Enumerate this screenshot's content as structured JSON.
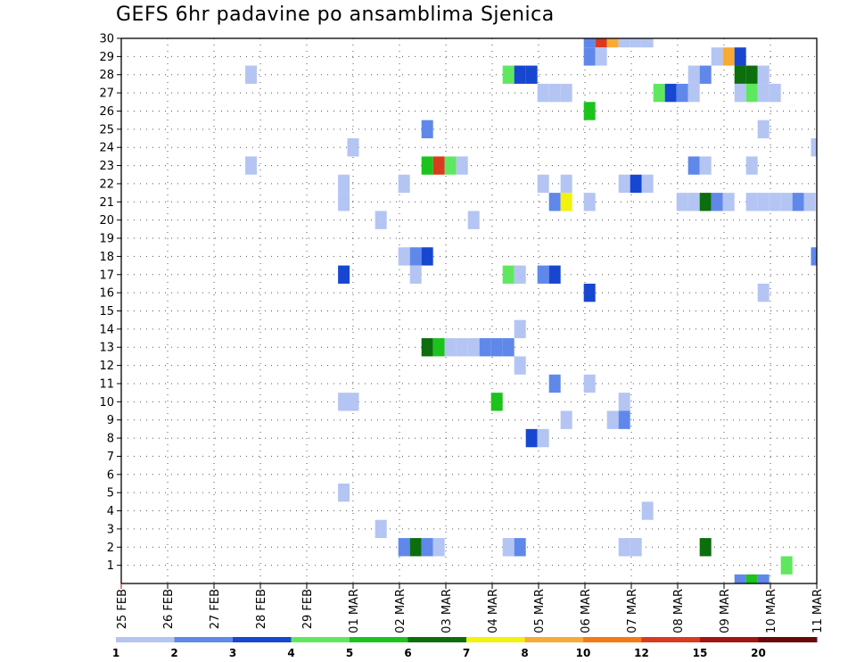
{
  "chart_data": {
    "type": "heatmap",
    "title": "GEFS 6hr padavine po ansamblima Sjenica",
    "xlabel": "",
    "ylabel": "",
    "ylim": [
      0,
      30
    ],
    "y_ticks": [
      "1",
      "2",
      "3",
      "4",
      "5",
      "6",
      "7",
      "8",
      "9",
      "10",
      "11",
      "12",
      "13",
      "14",
      "15",
      "16",
      "17",
      "18",
      "19",
      "20",
      "21",
      "22",
      "23",
      "24",
      "25",
      "26",
      "27",
      "28",
      "29",
      "30"
    ],
    "x_ticks": [
      "25 FEB",
      "26 FEB",
      "27 FEB",
      "28 FEB",
      "29 FEB",
      "01 MAR",
      "02 MAR",
      "03 MAR",
      "04 MAR",
      "05 MAR",
      "06 MAR",
      "07 MAR",
      "08 MAR",
      "09 MAR",
      "10 MAR",
      "11 MAR"
    ],
    "grid": true,
    "colorbar": {
      "position": "bottom",
      "labels": [
        "1",
        "2",
        "3",
        "4",
        "5",
        "6",
        "7",
        "8",
        "10",
        "12",
        "15",
        "20"
      ],
      "colors": [
        "#b4c5f3",
        "#5f88ea",
        "#1747d0",
        "#5fe85f",
        "#1cc31c",
        "#0c6e0c",
        "#f2f20c",
        "#f7ab35",
        "#f57a12",
        "#da3b1e",
        "#a3150f",
        "#6b0808"
      ]
    },
    "cells": [
      {
        "d": 2.8,
        "m": 28,
        "l": 0
      },
      {
        "d": 2.8,
        "m": 23,
        "l": 0
      },
      {
        "d": 4.8,
        "m": 21,
        "l": 0
      },
      {
        "d": 4.8,
        "m": 17,
        "l": 2
      },
      {
        "d": 4.8,
        "m": 22,
        "l": 0
      },
      {
        "d": 4.8,
        "m": 10,
        "l": 0
      },
      {
        "d": 4.8,
        "m": 5,
        "l": 0
      },
      {
        "d": 5.0,
        "m": 24,
        "l": 0
      },
      {
        "d": 5.0,
        "m": 10,
        "l": 0
      },
      {
        "d": 5.6,
        "m": 20,
        "l": 0
      },
      {
        "d": 5.6,
        "m": 3,
        "l": 0
      },
      {
        "d": 6.1,
        "m": 22,
        "l": 0
      },
      {
        "d": 6.1,
        "m": 18,
        "l": 0
      },
      {
        "d": 6.1,
        "m": 2,
        "l": 1
      },
      {
        "d": 6.35,
        "m": 18,
        "l": 1
      },
      {
        "d": 6.35,
        "m": 17,
        "l": 0
      },
      {
        "d": 6.35,
        "m": 2,
        "l": 5
      },
      {
        "d": 6.6,
        "m": 25,
        "l": 1
      },
      {
        "d": 6.6,
        "m": 23,
        "l": 4
      },
      {
        "d": 6.6,
        "m": 18,
        "l": 2
      },
      {
        "d": 6.6,
        "m": 13,
        "l": 5
      },
      {
        "d": 6.6,
        "m": 2,
        "l": 1
      },
      {
        "d": 6.85,
        "m": 23,
        "l": 9
      },
      {
        "d": 6.85,
        "m": 13,
        "l": 4
      },
      {
        "d": 6.85,
        "m": 2,
        "l": 0
      },
      {
        "d": 7.1,
        "m": 23,
        "l": 3
      },
      {
        "d": 7.1,
        "m": 13,
        "l": 0
      },
      {
        "d": 7.35,
        "m": 23,
        "l": 0
      },
      {
        "d": 7.35,
        "m": 13,
        "l": 0
      },
      {
        "d": 7.6,
        "m": 20,
        "l": 0
      },
      {
        "d": 7.6,
        "m": 13,
        "l": 0
      },
      {
        "d": 7.85,
        "m": 13,
        "l": 1
      },
      {
        "d": 8.1,
        "m": 13,
        "l": 1
      },
      {
        "d": 8.1,
        "m": 10,
        "l": 4
      },
      {
        "d": 8.35,
        "m": 28,
        "l": 3
      },
      {
        "d": 8.35,
        "m": 17,
        "l": 3
      },
      {
        "d": 8.35,
        "m": 13,
        "l": 1
      },
      {
        "d": 8.35,
        "m": 2,
        "l": 0
      },
      {
        "d": 8.6,
        "m": 28,
        "l": 2
      },
      {
        "d": 8.6,
        "m": 17,
        "l": 0
      },
      {
        "d": 8.6,
        "m": 14,
        "l": 0
      },
      {
        "d": 8.6,
        "m": 12,
        "l": 0
      },
      {
        "d": 8.6,
        "m": 2,
        "l": 1
      },
      {
        "d": 8.85,
        "m": 28,
        "l": 2
      },
      {
        "d": 8.85,
        "m": 8,
        "l": 2
      },
      {
        "d": 9.1,
        "m": 27,
        "l": 0
      },
      {
        "d": 9.1,
        "m": 22,
        "l": 0
      },
      {
        "d": 9.1,
        "m": 17,
        "l": 1
      },
      {
        "d": 9.1,
        "m": 8,
        "l": 0
      },
      {
        "d": 9.35,
        "m": 27,
        "l": 0
      },
      {
        "d": 9.35,
        "m": 21,
        "l": 1
      },
      {
        "d": 9.35,
        "m": 17,
        "l": 2
      },
      {
        "d": 9.35,
        "m": 11,
        "l": 1
      },
      {
        "d": 9.6,
        "m": 27,
        "l": 0
      },
      {
        "d": 9.6,
        "m": 22,
        "l": 0
      },
      {
        "d": 9.6,
        "m": 21,
        "l": 6
      },
      {
        "d": 9.6,
        "m": 9,
        "l": 0
      },
      {
        "d": 10.1,
        "m": 30,
        "l": 1
      },
      {
        "d": 10.1,
        "m": 29,
        "l": 1
      },
      {
        "d": 10.1,
        "m": 26,
        "l": 4
      },
      {
        "d": 10.1,
        "m": 21,
        "l": 0
      },
      {
        "d": 10.1,
        "m": 16,
        "l": 2
      },
      {
        "d": 10.1,
        "m": 11,
        "l": 0
      },
      {
        "d": 10.35,
        "m": 30,
        "l": 9
      },
      {
        "d": 10.35,
        "m": 29,
        "l": 0
      },
      {
        "d": 10.6,
        "m": 30,
        "l": 7
      },
      {
        "d": 10.6,
        "m": 9,
        "l": 0
      },
      {
        "d": 10.85,
        "m": 30,
        "l": 0
      },
      {
        "d": 10.85,
        "m": 22,
        "l": 0
      },
      {
        "d": 10.85,
        "m": 10,
        "l": 0
      },
      {
        "d": 10.85,
        "m": 9,
        "l": 1
      },
      {
        "d": 10.85,
        "m": 2,
        "l": 0
      },
      {
        "d": 11.1,
        "m": 30,
        "l": 0
      },
      {
        "d": 11.1,
        "m": 22,
        "l": 2
      },
      {
        "d": 11.1,
        "m": 2,
        "l": 0
      },
      {
        "d": 11.35,
        "m": 30,
        "l": 0
      },
      {
        "d": 11.35,
        "m": 22,
        "l": 0
      },
      {
        "d": 11.35,
        "m": 4,
        "l": 0
      },
      {
        "d": 11.6,
        "m": 27,
        "l": 3
      },
      {
        "d": 11.85,
        "m": 27,
        "l": 2
      },
      {
        "d": 12.1,
        "m": 27,
        "l": 1
      },
      {
        "d": 12.1,
        "m": 21,
        "l": 0
      },
      {
        "d": 12.35,
        "m": 28,
        "l": 0
      },
      {
        "d": 12.35,
        "m": 27,
        "l": 0
      },
      {
        "d": 12.35,
        "m": 23,
        "l": 1
      },
      {
        "d": 12.35,
        "m": 21,
        "l": 0
      },
      {
        "d": 12.6,
        "m": 28,
        "l": 1
      },
      {
        "d": 12.6,
        "m": 23,
        "l": 0
      },
      {
        "d": 12.6,
        "m": 21,
        "l": 5
      },
      {
        "d": 12.6,
        "m": 2,
        "l": 5
      },
      {
        "d": 12.85,
        "m": 29,
        "l": 0
      },
      {
        "d": 12.85,
        "m": 21,
        "l": 1
      },
      {
        "d": 13.1,
        "m": 29,
        "l": 7
      },
      {
        "d": 13.1,
        "m": 21,
        "l": 0
      },
      {
        "d": 13.35,
        "m": 29,
        "l": 2
      },
      {
        "d": 13.35,
        "m": 28,
        "l": 5
      },
      {
        "d": 13.35,
        "m": 27,
        "l": 0
      },
      {
        "d": 13.35,
        "m": 0,
        "l": 1
      },
      {
        "d": 13.6,
        "m": 28,
        "l": 5
      },
      {
        "d": 13.6,
        "m": 27,
        "l": 3
      },
      {
        "d": 13.6,
        "m": 23,
        "l": 0
      },
      {
        "d": 13.6,
        "m": 21,
        "l": 0
      },
      {
        "d": 13.6,
        "m": 0,
        "l": 4
      },
      {
        "d": 13.85,
        "m": 28,
        "l": 0
      },
      {
        "d": 13.85,
        "m": 27,
        "l": 0
      },
      {
        "d": 13.85,
        "m": 25,
        "l": 0
      },
      {
        "d": 13.85,
        "m": 21,
        "l": 0
      },
      {
        "d": 13.85,
        "m": 16,
        "l": 0
      },
      {
        "d": 13.85,
        "m": 0,
        "l": 1
      },
      {
        "d": 14.1,
        "m": 27,
        "l": 0
      },
      {
        "d": 14.1,
        "m": 21,
        "l": 0
      },
      {
        "d": 14.35,
        "m": 21,
        "l": 0
      },
      {
        "d": 14.35,
        "m": 1,
        "l": 3
      },
      {
        "d": 14.6,
        "m": 21,
        "l": 1
      },
      {
        "d": 14.85,
        "m": 21,
        "l": 0
      },
      {
        "d": 15.0,
        "m": 24,
        "l": 0
      },
      {
        "d": 15.0,
        "m": 18,
        "l": 1
      }
    ]
  }
}
